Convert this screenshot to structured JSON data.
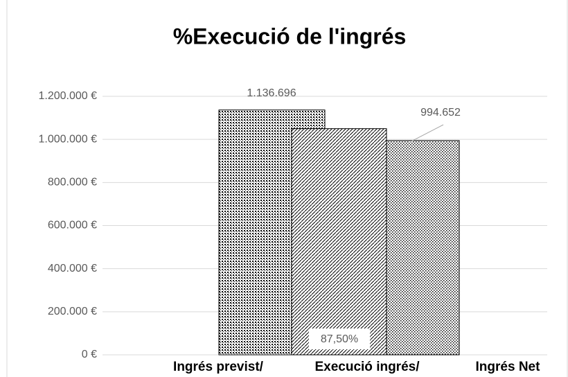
{
  "chart_data": {
    "type": "bar",
    "title": "%Execució de l'ingrés",
    "categories": [
      "Ingrés previst/",
      "Execució ingrés/",
      "Ingrés Net"
    ],
    "values": [
      1136696,
      1050000,
      994652
    ],
    "value_labels": [
      "1.136.696",
      null,
      "994.652"
    ],
    "annotation": "87,50%",
    "color": "#000000",
    "ylim": [
      0,
      1200000
    ],
    "yticks": [
      {
        "value": 0,
        "label": "0 €"
      },
      {
        "value": 200000,
        "label": "200.000 €"
      },
      {
        "value": 400000,
        "label": "400.000 €"
      },
      {
        "value": 600000,
        "label": "600.000 €"
      },
      {
        "value": 800000,
        "label": "800.000 €"
      },
      {
        "value": 1000000,
        "label": "1.000.000 €"
      },
      {
        "value": 1200000,
        "label": "1.200.000 €"
      }
    ],
    "grid": true
  }
}
